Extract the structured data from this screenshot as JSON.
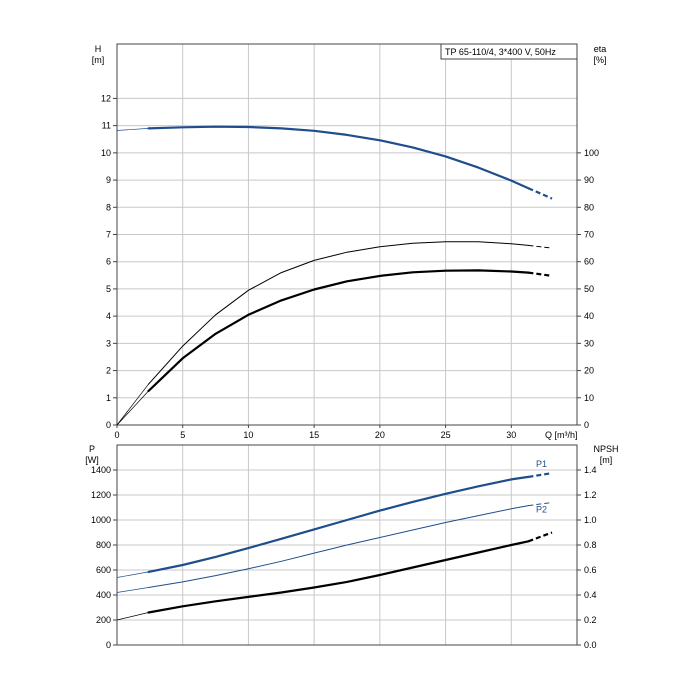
{
  "chart_data": [
    {
      "type": "line",
      "title": "TP 65-110/4, 3*400 V, 50Hz",
      "xlabel": "Q [m³/h]",
      "x_ticks": [
        "0",
        "5",
        "10",
        "15",
        "20",
        "25",
        "30"
      ],
      "xlim": [
        0,
        35
      ],
      "ylabel_left": [
        "H",
        "[m]"
      ],
      "ylim_left": [
        0,
        14
      ],
      "y_ticks_left": [
        "0",
        "1",
        "2",
        "3",
        "4",
        "5",
        "6",
        "7",
        "8",
        "9",
        "10",
        "11",
        "12"
      ],
      "ylabel_right": [
        "eta",
        "[%]"
      ],
      "ylim_right": [
        0,
        140
      ],
      "y_ticks_right": [
        "0",
        "10",
        "20",
        "30",
        "40",
        "50",
        "60",
        "70",
        "80",
        "90",
        "100"
      ],
      "grid": true,
      "series": [
        {
          "axis": "left",
          "color": "#1f4e8c",
          "width": 2.2,
          "x": [
            0,
            2.4,
            5,
            7.5,
            10,
            12.5,
            15,
            17.5,
            20,
            22.5,
            25,
            27.5,
            30,
            31.3
          ],
          "y": [
            10.82,
            10.9,
            10.94,
            10.96,
            10.95,
            10.9,
            10.81,
            10.66,
            10.46,
            10.2,
            9.87,
            9.46,
            8.98,
            8.7
          ],
          "tail_x": [
            31.3,
            33.1
          ],
          "tail_y": [
            8.7,
            8.32
          ]
        },
        {
          "axis": "right",
          "color": "#000000",
          "width": 1.0,
          "x": [
            0,
            2.4,
            5,
            7.5,
            10,
            12.5,
            15,
            17.5,
            20,
            22.5,
            25,
            27.5,
            30,
            31.3
          ],
          "y": [
            0,
            15,
            29,
            40.5,
            49.5,
            56,
            60.5,
            63.5,
            65.5,
            66.8,
            67.3,
            67.3,
            66.6,
            66
          ],
          "tail_x": [
            31.3,
            33.1
          ],
          "tail_y": [
            66,
            65
          ]
        },
        {
          "axis": "right",
          "color": "#000000",
          "width": 2.2,
          "x": [
            0,
            2.4,
            5,
            7.5,
            10,
            12.5,
            15,
            17.5,
            20,
            22.5,
            25,
            27.5,
            30,
            31.3
          ],
          "y": [
            0,
            12.5,
            24.5,
            33.5,
            40.5,
            45.8,
            49.8,
            52.8,
            54.8,
            56.1,
            56.7,
            56.8,
            56.4,
            56
          ],
          "tail_x": [
            31.3,
            33.1
          ],
          "tail_y": [
            56,
            54.8
          ]
        }
      ]
    },
    {
      "type": "line",
      "title": "",
      "x_ticks": [],
      "xlim": [
        0,
        35
      ],
      "ylabel_left": [
        "P",
        "[W]"
      ],
      "ylim_left": [
        0,
        1600
      ],
      "y_ticks_left": [
        "0",
        "200",
        "400",
        "600",
        "800",
        "1000",
        "1200",
        "1400"
      ],
      "ylabel_right": [
        "NPSH",
        "[m]"
      ],
      "ylim_right": [
        0,
        1.6
      ],
      "y_ticks_right": [
        "0.0",
        "0.2",
        "0.4",
        "0.6",
        "0.8",
        "1.0",
        "1.2",
        "1.4"
      ],
      "grid": true,
      "series": [
        {
          "name": "P1",
          "axis": "left",
          "color": "#1f4e8c",
          "width": 2.2,
          "x": [
            0,
            2.4,
            5,
            7.5,
            10,
            12.5,
            15,
            17.5,
            20,
            22.5,
            25,
            27.5,
            30,
            31.3
          ],
          "y": [
            540,
            585,
            640,
            705,
            775,
            850,
            925,
            1000,
            1075,
            1145,
            1210,
            1270,
            1325,
            1345
          ],
          "tail_x": [
            31.3,
            33.1
          ],
          "tail_y": [
            1345,
            1375
          ]
        },
        {
          "name": "P2",
          "axis": "left",
          "color": "#1f4e8c",
          "width": 1.0,
          "x": [
            0,
            2.4,
            5,
            7.5,
            10,
            12.5,
            15,
            17.5,
            20,
            22.5,
            25,
            27.5,
            30,
            31.3
          ],
          "y": [
            420,
            460,
            505,
            555,
            610,
            670,
            735,
            800,
            860,
            920,
            980,
            1035,
            1090,
            1115
          ],
          "tail_x": [
            31.3,
            33.1
          ],
          "tail_y": [
            1115,
            1140
          ]
        },
        {
          "axis": "right",
          "color": "#000000",
          "width": 2.2,
          "x": [
            0,
            2.4,
            5,
            7.5,
            10,
            12.5,
            15,
            17.5,
            20,
            22.5,
            25,
            27.5,
            30,
            31.3
          ],
          "y": [
            0.2,
            0.26,
            0.31,
            0.35,
            0.385,
            0.42,
            0.46,
            0.505,
            0.56,
            0.62,
            0.68,
            0.74,
            0.8,
            0.83
          ],
          "tail_x": [
            31.3,
            33.1
          ],
          "tail_y": [
            0.83,
            0.9
          ]
        }
      ]
    }
  ]
}
